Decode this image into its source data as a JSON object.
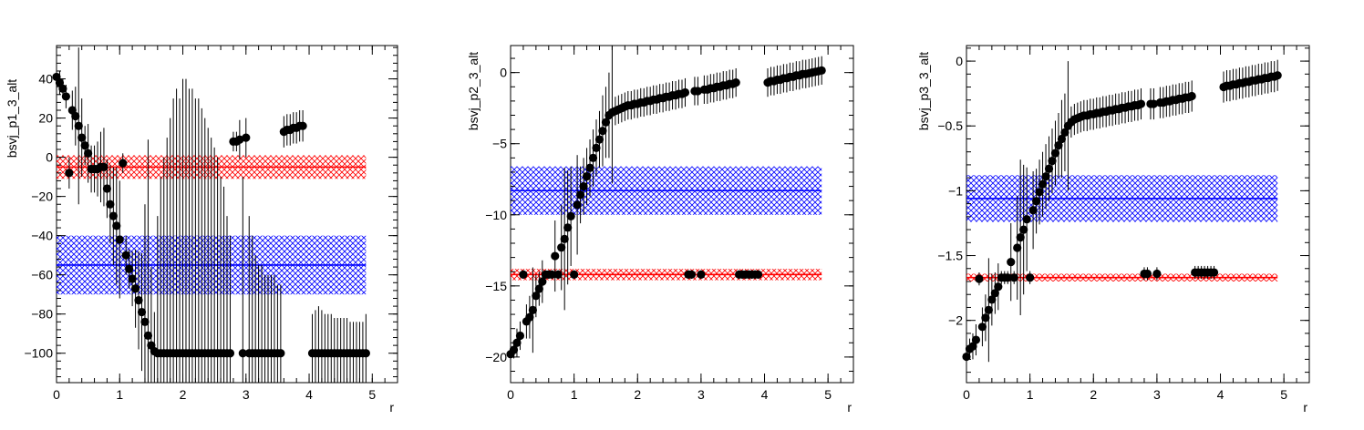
{
  "chart_data": [
    {
      "type": "scatter",
      "ylabel": "bsvj_p1_3_alt",
      "xlabel": "r",
      "xlim": [
        0,
        5.4
      ],
      "ylim": [
        -115,
        57
      ],
      "xticks": [
        0,
        1,
        2,
        3,
        4,
        5
      ],
      "yticks": [
        -100,
        -80,
        -60,
        -40,
        -20,
        0,
        20,
        40
      ],
      "grid": false,
      "points": {
        "x": [
          0.0,
          0.05,
          0.1,
          0.15,
          0.2,
          0.25,
          0.3,
          0.35,
          0.4,
          0.45,
          0.5,
          0.55,
          0.6,
          0.65,
          0.7,
          0.75,
          0.8,
          0.85,
          0.9,
          0.95,
          1.0,
          1.05,
          1.1,
          1.15,
          1.2,
          1.25,
          1.3,
          1.35,
          1.4,
          1.45,
          1.5,
          1.55,
          1.6,
          1.65,
          1.7,
          1.75,
          1.8,
          1.85,
          1.9,
          1.95,
          2.0,
          2.05,
          2.1,
          2.15,
          2.2,
          2.25,
          2.3,
          2.35,
          2.4,
          2.45,
          2.5,
          2.55,
          2.6,
          2.65,
          2.7,
          2.75,
          2.8,
          2.85,
          2.9,
          2.95,
          3.0,
          3.05,
          3.1,
          3.15,
          3.2,
          3.25,
          3.3,
          3.35,
          3.4,
          3.45,
          3.5,
          3.55,
          3.6,
          3.65,
          3.7,
          3.75,
          3.8,
          3.85,
          3.9,
          4.05,
          4.1,
          4.15,
          4.2,
          4.25,
          4.3,
          4.35,
          4.4,
          4.45,
          4.5,
          4.55,
          4.6,
          4.65,
          4.7,
          4.75,
          4.8,
          4.85,
          4.9
        ],
        "y": [
          41,
          38,
          35,
          31,
          -8,
          24,
          21,
          16,
          10,
          6,
          2,
          -6,
          -6,
          -6,
          -5,
          -5,
          -16,
          -24,
          -30,
          -35,
          -42,
          -3,
          -50,
          -57,
          -62,
          -67,
          -73,
          -79,
          -84,
          -91,
          -96,
          -99,
          -100,
          -100,
          -100,
          -100,
          -100,
          -100,
          -100,
          -100,
          -100,
          -100,
          -100,
          -100,
          -100,
          -100,
          -100,
          -100,
          -100,
          -100,
          -100,
          -100,
          -100,
          -100,
          -100,
          -100,
          8,
          8,
          9,
          -100,
          10,
          -100,
          -100,
          -100,
          -100,
          -100,
          -100,
          -100,
          -100,
          -100,
          -100,
          -100,
          13,
          14,
          14,
          15,
          15,
          16,
          16,
          -100,
          -100,
          -100,
          -100,
          -100,
          -100,
          -100,
          -100,
          -100,
          -100,
          -100,
          -100,
          -100,
          -100,
          -100,
          -100,
          -100,
          -100
        ],
        "err": [
          4,
          6,
          5,
          6,
          8,
          10,
          15,
          40,
          20,
          10,
          15,
          12,
          12,
          14,
          18,
          20,
          15,
          20,
          25,
          30,
          30,
          5,
          10,
          10,
          14,
          20,
          25,
          30,
          60,
          100,
          40,
          20,
          70,
          90,
          100,
          110,
          120,
          130,
          135,
          130,
          140,
          140,
          135,
          135,
          130,
          130,
          125,
          120,
          115,
          110,
          105,
          100,
          90,
          85,
          70,
          60,
          5,
          5,
          10,
          90,
          10,
          70,
          60,
          50,
          45,
          45,
          40,
          40,
          40,
          40,
          35,
          35,
          8,
          8,
          8,
          8,
          8,
          8,
          8,
          20,
          22,
          24,
          22,
          20,
          20,
          20,
          18,
          18,
          18,
          18,
          18,
          16,
          16,
          16,
          16,
          16,
          20
        ]
      },
      "bands": [
        {
          "center": -5,
          "low": -11,
          "high": 1,
          "color": "#ff0000"
        },
        {
          "center": -55,
          "low": -70,
          "high": -40,
          "color": "#0000ff"
        }
      ],
      "band_xrange": [
        0,
        4.9
      ]
    },
    {
      "type": "scatter",
      "ylabel": "bsvj_p2_3_alt",
      "xlabel": "r",
      "xlim": [
        0,
        5.4
      ],
      "ylim": [
        -21.8,
        1.9
      ],
      "xticks": [
        0,
        1,
        2,
        3,
        4,
        5
      ],
      "yticks": [
        -20,
        -15,
        -10,
        -5,
        0
      ],
      "grid": false,
      "points": {
        "x": [
          0.0,
          0.05,
          0.1,
          0.15,
          0.2,
          0.25,
          0.3,
          0.35,
          0.4,
          0.45,
          0.5,
          0.55,
          0.6,
          0.65,
          0.7,
          0.75,
          0.8,
          0.85,
          0.9,
          0.95,
          1.0,
          1.05,
          1.1,
          1.15,
          1.2,
          1.25,
          1.3,
          1.35,
          1.4,
          1.45,
          1.5,
          1.55,
          1.6,
          1.65,
          1.7,
          1.75,
          1.8,
          1.85,
          1.9,
          1.95,
          2.0,
          2.05,
          2.1,
          2.15,
          2.2,
          2.25,
          2.3,
          2.35,
          2.4,
          2.45,
          2.5,
          2.55,
          2.6,
          2.65,
          2.7,
          2.75,
          2.8,
          2.85,
          2.9,
          2.95,
          3.0,
          3.05,
          3.1,
          3.15,
          3.2,
          3.25,
          3.3,
          3.35,
          3.4,
          3.45,
          3.5,
          3.55,
          3.6,
          3.65,
          3.7,
          3.75,
          3.8,
          3.85,
          3.9,
          4.05,
          4.1,
          4.15,
          4.2,
          4.25,
          4.3,
          4.35,
          4.4,
          4.45,
          4.5,
          4.55,
          4.6,
          4.65,
          4.7,
          4.75,
          4.8,
          4.85,
          4.9
        ],
        "y": [
          -19.8,
          -19.5,
          -19,
          -18.5,
          -14.2,
          -17.5,
          -17.2,
          -16.7,
          -15.7,
          -15.2,
          -14.7,
          -14.2,
          -14.2,
          -14.2,
          -12.9,
          -14.2,
          -12.3,
          -11.7,
          -10.9,
          -10.1,
          -14.2,
          -9.3,
          -8.6,
          -8.0,
          -7.3,
          -6.7,
          -6.0,
          -5.3,
          -4.7,
          -4.1,
          -3.5,
          -3.0,
          -2.8,
          -2.7,
          -2.6,
          -2.5,
          -2.4,
          -2.3,
          -2.3,
          -2.2,
          -2.2,
          -2.1,
          -2.1,
          -2.0,
          -2.0,
          -1.9,
          -1.9,
          -1.8,
          -1.8,
          -1.7,
          -1.7,
          -1.6,
          -1.6,
          -1.5,
          -1.5,
          -1.4,
          -14.2,
          -14.2,
          -1.3,
          -1.3,
          -14.2,
          -1.2,
          -1.2,
          -1.1,
          -1.1,
          -1.0,
          -1.0,
          -0.9,
          -0.9,
          -0.8,
          -0.8,
          -0.7,
          -14.2,
          -14.2,
          -14.2,
          -14.2,
          -14.2,
          -14.2,
          -14.2,
          -0.7,
          -0.6,
          -0.6,
          -0.5,
          -0.5,
          -0.4,
          -0.4,
          -0.3,
          -0.3,
          -0.2,
          -0.2,
          -0.1,
          -0.1,
          -0.05,
          0.0,
          0.05,
          0.1,
          0.15
        ],
        "err": [
          0.5,
          0.6,
          1.0,
          1.0,
          0.3,
          1.2,
          1.5,
          3.0,
          1.5,
          1.2,
          1.5,
          0.3,
          0.3,
          0.3,
          2.5,
          0.3,
          3.0,
          5.0,
          4.0,
          3.5,
          0.3,
          3.5,
          2.0,
          2.0,
          2.0,
          2.0,
          2.0,
          2.0,
          2.0,
          2.5,
          2.5,
          3.0,
          5.0,
          1.0,
          1.0,
          1.0,
          1.0,
          1.0,
          1.0,
          1.0,
          1.0,
          1.0,
          1.0,
          1.0,
          1.0,
          1.0,
          1.0,
          1.0,
          1.0,
          1.0,
          1.0,
          1.0,
          1.0,
          1.0,
          1.0,
          1.0,
          0.3,
          0.3,
          1.0,
          1.0,
          0.3,
          1.0,
          1.0,
          1.0,
          1.0,
          1.0,
          1.0,
          1.0,
          1.0,
          1.0,
          1.0,
          1.0,
          0.3,
          0.3,
          0.3,
          0.3,
          0.3,
          0.3,
          0.3,
          1.0,
          1.0,
          1.0,
          1.0,
          1.0,
          1.0,
          1.0,
          1.0,
          1.0,
          1.0,
          1.0,
          1.0,
          1.0,
          1.0,
          1.0,
          1.0,
          1.0,
          1.0
        ]
      },
      "bands": [
        {
          "center": -14.2,
          "low": -14.6,
          "high": -13.8,
          "color": "#ff0000"
        },
        {
          "center": -8.3,
          "low": -10.0,
          "high": -6.6,
          "color": "#0000ff"
        }
      ],
      "band_xrange": [
        0,
        4.9
      ]
    },
    {
      "type": "scatter",
      "ylabel": "bsvj_p3_3_alt",
      "xlabel": "r",
      "xlim": [
        0,
        5.4
      ],
      "ylim": [
        -2.48,
        0.12
      ],
      "xticks": [
        0,
        1,
        2,
        3,
        4,
        5
      ],
      "yticks": [
        -2,
        -1.5,
        -1,
        -0.5,
        0
      ],
      "grid": false,
      "points": {
        "x": [
          0.0,
          0.05,
          0.1,
          0.15,
          0.2,
          0.25,
          0.3,
          0.35,
          0.4,
          0.45,
          0.5,
          0.55,
          0.6,
          0.65,
          0.7,
          0.75,
          0.8,
          0.85,
          0.9,
          0.95,
          1.0,
          1.05,
          1.1,
          1.15,
          1.2,
          1.25,
          1.3,
          1.35,
          1.4,
          1.45,
          1.5,
          1.55,
          1.6,
          1.65,
          1.7,
          1.75,
          1.8,
          1.85,
          1.9,
          1.95,
          2.0,
          2.05,
          2.1,
          2.15,
          2.2,
          2.25,
          2.3,
          2.35,
          2.4,
          2.45,
          2.5,
          2.55,
          2.6,
          2.65,
          2.7,
          2.75,
          2.8,
          2.85,
          2.9,
          2.95,
          3.0,
          3.05,
          3.1,
          3.15,
          3.2,
          3.25,
          3.3,
          3.35,
          3.4,
          3.45,
          3.5,
          3.55,
          3.6,
          3.65,
          3.7,
          3.75,
          3.8,
          3.85,
          3.9,
          4.05,
          4.1,
          4.15,
          4.2,
          4.25,
          4.3,
          4.35,
          4.4,
          4.45,
          4.5,
          4.55,
          4.6,
          4.65,
          4.7,
          4.75,
          4.8,
          4.85,
          4.9
        ],
        "y": [
          -2.28,
          -2.22,
          -2.2,
          -2.15,
          -1.68,
          -2.05,
          -1.98,
          -1.92,
          -1.84,
          -1.79,
          -1.74,
          -1.67,
          -1.67,
          -1.67,
          -1.55,
          -1.67,
          -1.44,
          -1.36,
          -1.3,
          -1.22,
          -1.67,
          -1.15,
          -1.08,
          -1.01,
          -0.95,
          -0.89,
          -0.83,
          -0.77,
          -0.71,
          -0.65,
          -0.6,
          -0.55,
          -0.5,
          -0.47,
          -0.45,
          -0.44,
          -0.43,
          -0.42,
          -0.42,
          -0.41,
          -0.41,
          -0.4,
          -0.4,
          -0.39,
          -0.39,
          -0.38,
          -0.38,
          -0.37,
          -0.37,
          -0.36,
          -0.36,
          -0.35,
          -0.35,
          -0.34,
          -0.34,
          -0.33,
          -1.64,
          -1.64,
          -0.33,
          -0.33,
          -1.64,
          -0.32,
          -0.32,
          -0.31,
          -0.31,
          -0.3,
          -0.3,
          -0.29,
          -0.29,
          -0.28,
          -0.28,
          -0.27,
          -1.63,
          -1.63,
          -1.63,
          -1.63,
          -1.63,
          -1.63,
          -1.63,
          -0.2,
          -0.19,
          -0.19,
          -0.18,
          -0.18,
          -0.17,
          -0.17,
          -0.16,
          -0.16,
          -0.15,
          -0.15,
          -0.14,
          -0.14,
          -0.13,
          -0.13,
          -0.12,
          -0.12,
          -0.11
        ],
        "err": [
          0.06,
          0.08,
          0.1,
          0.12,
          0.05,
          0.15,
          0.18,
          0.4,
          0.2,
          0.16,
          0.18,
          0.05,
          0.05,
          0.05,
          0.3,
          0.05,
          0.4,
          0.6,
          0.5,
          0.4,
          0.05,
          0.3,
          0.25,
          0.25,
          0.25,
          0.25,
          0.25,
          0.25,
          0.25,
          0.25,
          0.3,
          0.3,
          0.5,
          0.12,
          0.12,
          0.12,
          0.12,
          0.12,
          0.12,
          0.12,
          0.12,
          0.12,
          0.12,
          0.12,
          0.12,
          0.12,
          0.12,
          0.12,
          0.12,
          0.12,
          0.12,
          0.12,
          0.12,
          0.12,
          0.12,
          0.12,
          0.05,
          0.05,
          0.12,
          0.12,
          0.05,
          0.12,
          0.12,
          0.12,
          0.12,
          0.12,
          0.12,
          0.12,
          0.12,
          0.12,
          0.12,
          0.12,
          0.05,
          0.05,
          0.05,
          0.05,
          0.05,
          0.05,
          0.05,
          0.12,
          0.12,
          0.12,
          0.12,
          0.12,
          0.12,
          0.12,
          0.12,
          0.12,
          0.12,
          0.12,
          0.12,
          0.12,
          0.12,
          0.12,
          0.12,
          0.12,
          0.12
        ]
      },
      "bands": [
        {
          "center": -1.67,
          "low": -1.7,
          "high": -1.64,
          "color": "#ff0000"
        },
        {
          "center": -1.06,
          "low": -1.24,
          "high": -0.88,
          "color": "#0000ff"
        }
      ],
      "band_xrange": [
        0,
        4.9
      ]
    }
  ]
}
